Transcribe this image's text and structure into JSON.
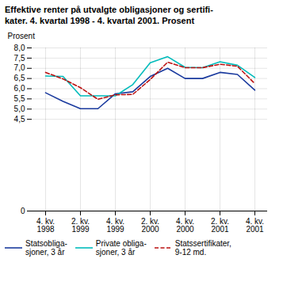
{
  "chart_data": {
    "type": "line",
    "title": "Effektive renter på utvalgte obligasjoner og sertifi-\nkater. 4. kvartal 1998 - 4. kvartal 2001. Prosent",
    "y_label": "Prosent",
    "categories": [
      "4. kv.\n1998",
      null,
      "2. kv.\n1999",
      null,
      "4. kv.\n1999",
      null,
      "2. kv.\n2000",
      null,
      "4. kv.\n2000",
      null,
      "2. kv.\n2001",
      null,
      "4. kv.\n2001"
    ],
    "series": [
      {
        "name": "Statsobliga-\nsjoner, 3 år",
        "color": "#1a3a9e",
        "line_style": "solid",
        "values": [
          5.8,
          5.38,
          5.02,
          5.02,
          5.75,
          5.85,
          6.6,
          7.0,
          6.5,
          6.5,
          6.8,
          6.7,
          5.93
        ]
      },
      {
        "name": "Private obliga-\nsjoner, 3 år",
        "color": "#00bbbb",
        "line_style": "solid",
        "values": [
          6.62,
          6.6,
          5.65,
          5.65,
          5.65,
          6.2,
          7.27,
          7.57,
          7.05,
          7.03,
          7.32,
          7.15,
          6.55
        ]
      },
      {
        "name": "Statssertifikater,\n9-12 md.",
        "color": "#bb1111",
        "line_style": "dashed",
        "values": [
          6.8,
          6.48,
          6.05,
          5.48,
          5.7,
          5.72,
          6.45,
          7.3,
          7.03,
          7.03,
          7.2,
          7.1,
          6.25
        ]
      }
    ],
    "ylim": [
      0,
      8.0
    ],
    "yticks": [
      0,
      {
        "value": 4.5,
        "label": "4,5"
      },
      {
        "value": 5.0,
        "label": "5,0"
      },
      {
        "value": 5.5,
        "label": "5,5"
      },
      {
        "value": 6.0,
        "label": "6,0"
      },
      {
        "value": 6.5,
        "label": "6,5"
      },
      {
        "value": 7.0,
        "label": "7,0"
      },
      {
        "value": 7.5,
        "label": "7,5"
      },
      {
        "value": 8.0,
        "label": "8,0"
      }
    ],
    "grid": true,
    "legend": "bottom"
  }
}
